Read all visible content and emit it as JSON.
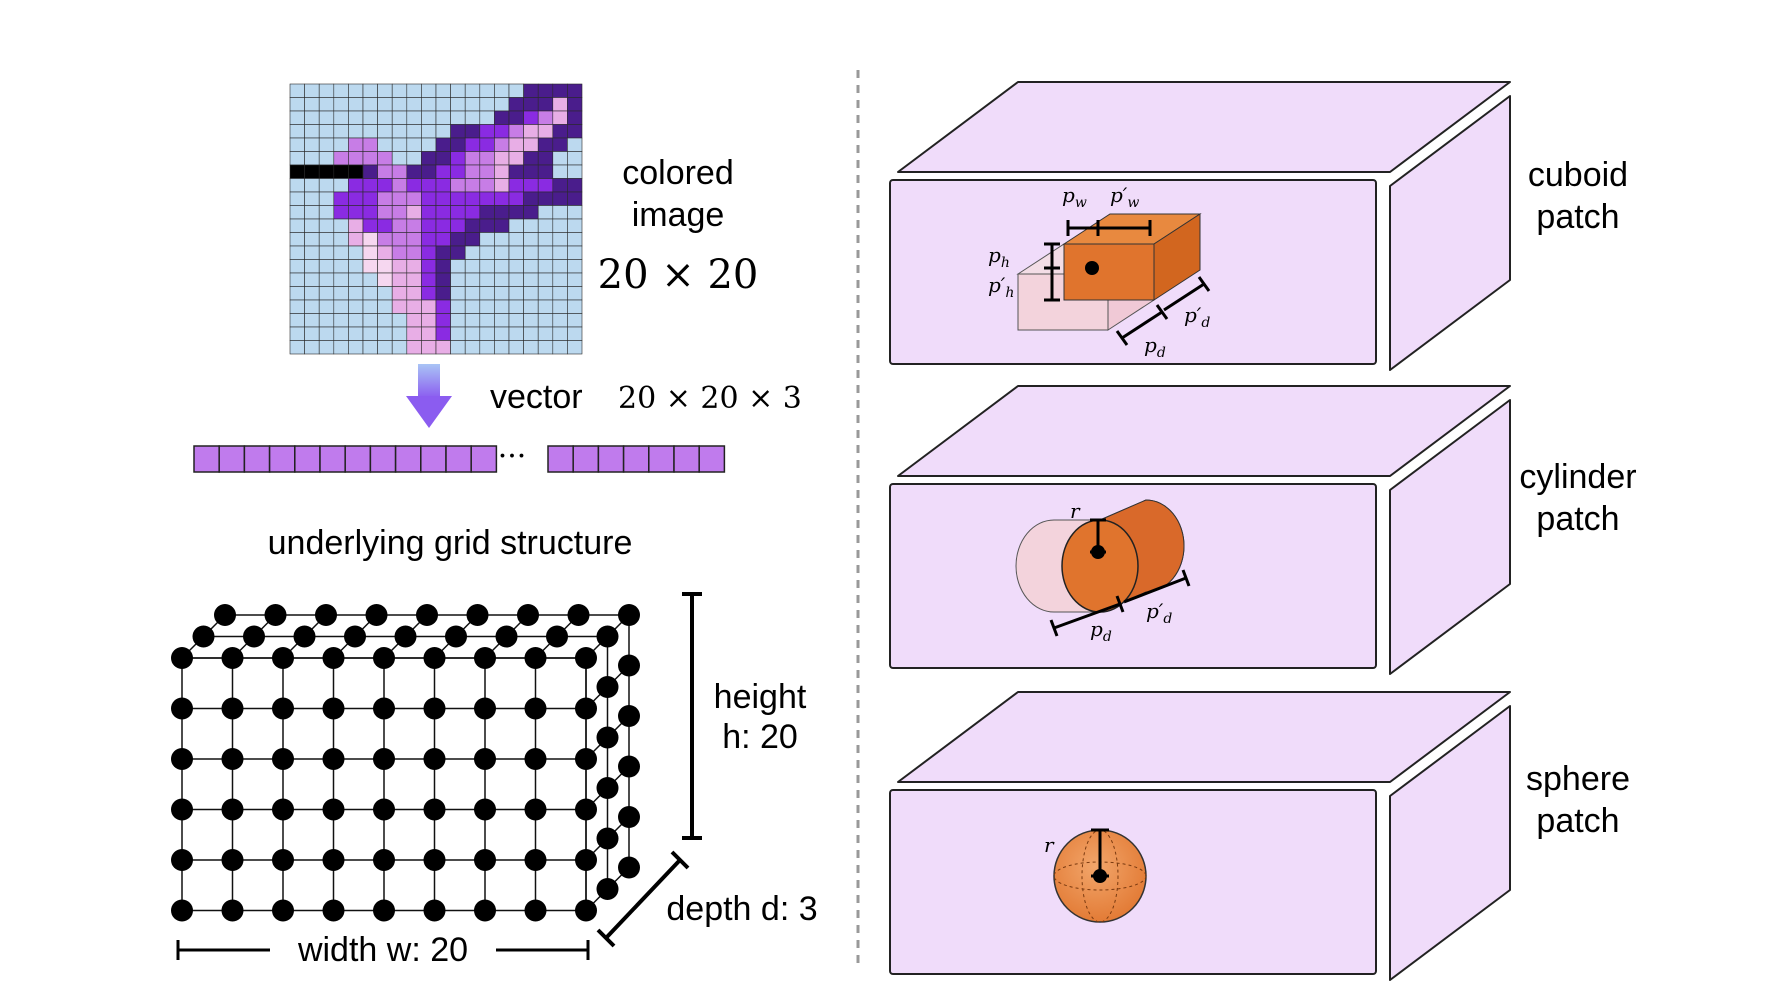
{
  "image_section": {
    "caption_line1": "colored",
    "caption_line2": "image",
    "size_label": "20 × 20",
    "bird_colors": {
      "background": "#bcd9ef",
      "grid": "#2a2a2a",
      "dark_purple": "#4a1d8c",
      "purple": "#8a2be2",
      "light_purple": "#c77de6",
      "pink": "#e8aee6",
      "pale": "#f6d7f0",
      "beak": "#000000"
    }
  },
  "vector_section": {
    "label": "vector",
    "dims": "20 × 20 × 3",
    "ellipsis": "···",
    "cell_color": "#c07bed"
  },
  "grid_section": {
    "title": "underlying grid structure",
    "height_line1": "height",
    "height_line2": "h: 20",
    "depth_label": "depth d: 3",
    "width_label": "width w: 20"
  },
  "patches": [
    {
      "label_line1": "cuboid",
      "label_line2": "patch",
      "params": [
        "p",
        "w",
        "p′",
        "w",
        "p",
        "h",
        "p′",
        "h",
        "p",
        "d",
        "p′",
        "d"
      ]
    },
    {
      "label_line1": "cylinder",
      "label_line2": "patch",
      "params": [
        "r",
        "p",
        "d",
        "p′",
        "d"
      ]
    },
    {
      "label_line1": "sphere",
      "label_line2": "patch",
      "params": [
        "r"
      ]
    }
  ],
  "colors": {
    "box_face": "#f0dcfa",
    "box_stroke": "#222222",
    "patch_orange": "#e0742d",
    "patch_ghost": "#f1d2dc",
    "divider": "#999999"
  }
}
